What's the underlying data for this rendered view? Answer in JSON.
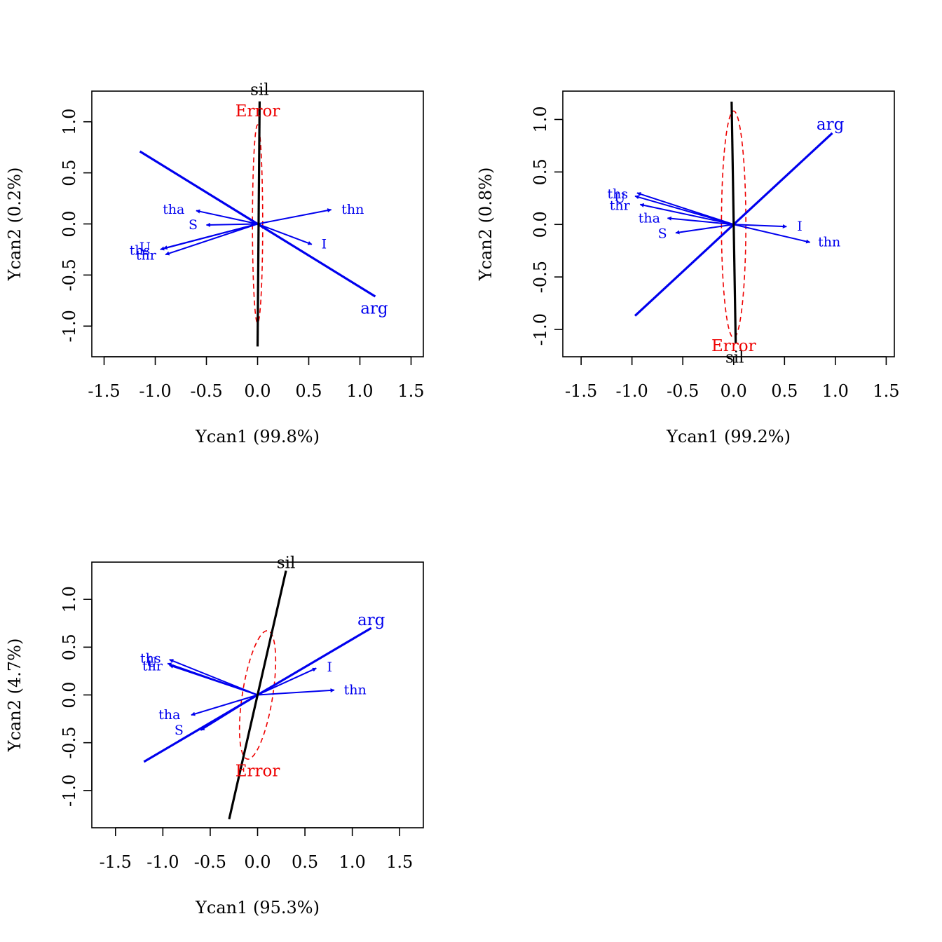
{
  "colors": {
    "vector": "#0000ee",
    "error": "#ee0000",
    "sil": "#000000",
    "axis": "#000000"
  },
  "chart_data": [
    {
      "type": "scatter",
      "title": "",
      "xlabel": "Ycan1 (99.8%)",
      "ylabel": "Ycan2 (0.2%)",
      "xlim": [
        -1.62,
        1.62
      ],
      "ylim": [
        -1.3,
        1.3
      ],
      "xticks": [
        -1.5,
        -1.0,
        -0.5,
        0.0,
        0.5,
        1.0,
        1.5
      ],
      "xtick_labels": [
        "-1.5",
        "-1.0",
        "-0.5",
        "0.0",
        "0.5",
        "1.0",
        "1.5"
      ],
      "yticks": [
        -1.0,
        -0.5,
        0.0,
        0.5,
        1.0
      ],
      "ytick_labels": [
        "-1.0",
        "-0.5",
        "0.0",
        "0.5",
        "1.0"
      ],
      "vectors": [
        {
          "label": "tha",
          "x": -0.6,
          "y": 0.13,
          "lx": -0.82,
          "ly": 0.14
        },
        {
          "label": "S",
          "x": -0.5,
          "y": -0.01,
          "lx": -0.63,
          "ly": -0.01
        },
        {
          "label": "thn",
          "x": 0.72,
          "y": 0.14,
          "lx": 0.93,
          "ly": 0.14
        },
        {
          "label": "I",
          "x": 0.53,
          "y": -0.2,
          "lx": 0.65,
          "ly": -0.2
        },
        {
          "label": "ths",
          "x": -0.95,
          "y": -0.25,
          "lx": -1.15,
          "ly": -0.26
        },
        {
          "label": "U",
          "x": -0.92,
          "y": -0.24,
          "lx": -1.1,
          "ly": -0.23
        },
        {
          "label": "thr",
          "x": -0.9,
          "y": -0.3,
          "lx": -1.09,
          "ly": -0.31
        }
      ],
      "lines": [
        {
          "label": "arg",
          "x1": -1.15,
          "y1": 0.71,
          "x2": 1.15,
          "y2": -0.71,
          "lx": 1.14,
          "ly": -0.83
        }
      ],
      "sil": {
        "label": "sil",
        "x1": 0.0,
        "y1": -1.2,
        "x2": 0.02,
        "y2": 1.2,
        "lx": 0.02,
        "ly": 1.31
      },
      "error": {
        "label": "Error",
        "cx": 0.0,
        "cy": 0.0,
        "rx": 0.05,
        "ry": 0.97,
        "rotate": 0.0,
        "lx": 0.0,
        "ly": 1.1
      }
    },
    {
      "type": "scatter",
      "title": "",
      "xlabel": "Ycan1 (99.2%)",
      "ylabel": "Ycan2 (0.8%)",
      "xlim": [
        -1.68,
        1.58
      ],
      "ylim": [
        -1.26,
        1.27
      ],
      "xticks": [
        -1.5,
        -1.0,
        -0.5,
        0.0,
        0.5,
        1.0,
        1.5
      ],
      "xtick_labels": [
        "-1.5",
        "-1.0",
        "-0.5",
        "0.0",
        "0.5",
        "1.0",
        "1.5"
      ],
      "yticks": [
        -1.0,
        -0.5,
        0.0,
        0.5,
        1.0
      ],
      "ytick_labels": [
        "-1.0",
        "-0.5",
        "0.0",
        "0.5",
        "1.0"
      ],
      "vectors": [
        {
          "label": "ths",
          "x": -0.95,
          "y": 0.3,
          "lx": -1.14,
          "ly": 0.29
        },
        {
          "label": "U",
          "x": -0.97,
          "y": 0.27,
          "lx": -1.12,
          "ly": 0.25
        },
        {
          "label": "thr",
          "x": -0.92,
          "y": 0.19,
          "lx": -1.12,
          "ly": 0.18
        },
        {
          "label": "tha",
          "x": -0.65,
          "y": 0.06,
          "lx": -0.83,
          "ly": 0.06
        },
        {
          "label": "S",
          "x": -0.57,
          "y": -0.08,
          "lx": -0.7,
          "ly": -0.09
        },
        {
          "label": "I",
          "x": 0.52,
          "y": -0.02,
          "lx": 0.65,
          "ly": -0.02
        },
        {
          "label": "thn",
          "x": 0.75,
          "y": -0.17,
          "lx": 0.94,
          "ly": -0.17
        }
      ],
      "lines": [
        {
          "label": "arg",
          "x1": -0.97,
          "y1": -0.87,
          "x2": 0.97,
          "y2": 0.87,
          "lx": 0.95,
          "ly": 0.95
        }
      ],
      "sil": {
        "label": "sil",
        "x1": -0.02,
        "y1": 1.17,
        "x2": 0.02,
        "y2": -1.13,
        "lx": 0.01,
        "ly": -1.27
      },
      "error": {
        "label": "Error",
        "cx": 0.0,
        "cy": 0.0,
        "rx": 0.12,
        "ry": 1.08,
        "rotate": 0.0,
        "lx": 0.0,
        "ly": -1.16
      }
    },
    {
      "type": "scatter",
      "title": "",
      "xlabel": "Ycan1 (95.3%)",
      "ylabel": "Ycan2 (4.7%)",
      "xlim": [
        -1.75,
        1.75
      ],
      "ylim": [
        -1.39,
        1.39
      ],
      "xticks": [
        -1.5,
        -1.0,
        -0.5,
        0.0,
        0.5,
        1.0,
        1.5
      ],
      "xtick_labels": [
        "-1.5",
        "-1.0",
        "-0.5",
        "0.0",
        "0.5",
        "1.0",
        "1.5"
      ],
      "yticks": [
        -1.0,
        -0.5,
        0.0,
        0.5,
        1.0
      ],
      "ytick_labels": [
        "-1.0",
        "-0.5",
        "0.0",
        "0.5",
        "1.0"
      ],
      "vectors": [
        {
          "label": "ths",
          "x": -0.93,
          "y": 0.37,
          "lx": -1.13,
          "ly": 0.38
        },
        {
          "label": "U",
          "x": -0.95,
          "y": 0.33,
          "lx": -1.12,
          "ly": 0.34
        },
        {
          "label": "thr",
          "x": -0.93,
          "y": 0.31,
          "lx": -1.11,
          "ly": 0.3
        },
        {
          "label": "I",
          "x": 0.62,
          "y": 0.28,
          "lx": 0.76,
          "ly": 0.29
        },
        {
          "label": "thn",
          "x": 0.81,
          "y": 0.05,
          "lx": 1.03,
          "ly": 0.05
        },
        {
          "label": "tha",
          "x": -0.7,
          "y": -0.21,
          "lx": -0.93,
          "ly": -0.21
        },
        {
          "label": "S",
          "x": -0.6,
          "y": -0.37,
          "lx": -0.83,
          "ly": -0.37
        }
      ],
      "lines": [
        {
          "label": "arg",
          "x1": -1.2,
          "y1": -0.7,
          "x2": 1.2,
          "y2": 0.7,
          "lx": 1.2,
          "ly": 0.78
        }
      ],
      "sil": {
        "label": "sil",
        "x1": -0.3,
        "y1": -1.3,
        "x2": 0.3,
        "y2": 1.3,
        "lx": 0.3,
        "ly": 1.38
      },
      "error": {
        "label": "Error",
        "cx": 0.0,
        "cy": 0.0,
        "rx": 0.16,
        "ry": 0.68,
        "rotate": 9.0,
        "lx": 0.0,
        "ly": -0.8
      }
    }
  ]
}
